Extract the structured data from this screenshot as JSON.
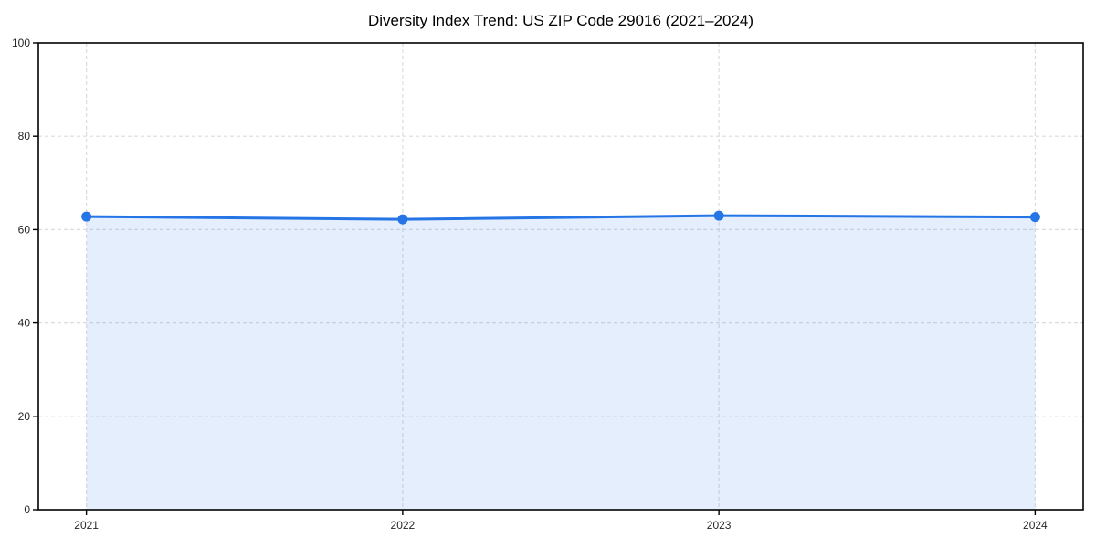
{
  "chart_data": {
    "type": "area",
    "title": "Diversity Index Trend: US ZIP Code 29016 (2021–2024)",
    "categories": [
      "2021",
      "2022",
      "2023",
      "2024"
    ],
    "series": [
      {
        "name": "Diversity Index",
        "values": [
          62.8,
          62.2,
          63.0,
          62.7
        ]
      }
    ],
    "xlabel": "",
    "ylabel": "",
    "ylim": [
      0,
      100
    ],
    "yticks": [
      0,
      20,
      40,
      60,
      80,
      100
    ],
    "grid": "dashed-both-axes",
    "legend_position": "none",
    "colors": {
      "line": "#2575e7",
      "marker": "#2575e7",
      "fill": "rgba(37,117,231,0.12)",
      "grid": "#dcdcdc",
      "spine": "#000000",
      "title": "#000000",
      "tick_label": "#262626"
    }
  }
}
